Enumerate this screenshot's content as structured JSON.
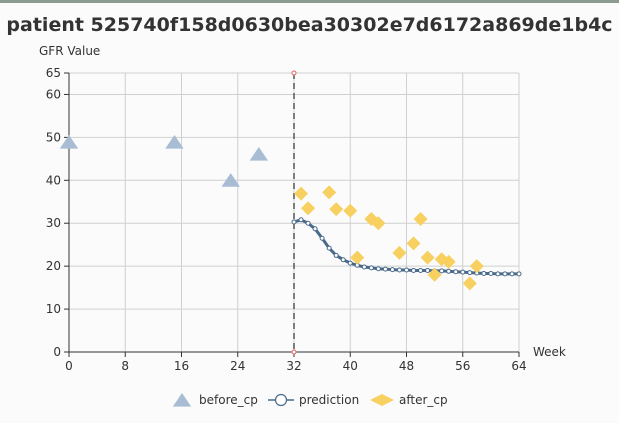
{
  "chart_data": {
    "type": "scatter",
    "title": "patient 525740f158d0630bea30302e7d6172a869de1b4c",
    "xlabel": "Week",
    "ylabel": "GFR Value",
    "xlim": [
      0,
      64
    ],
    "ylim": [
      0,
      65
    ],
    "x_ticks": [
      0,
      8,
      16,
      24,
      32,
      40,
      48,
      56,
      64
    ],
    "y_ticks": [
      0,
      10,
      20,
      30,
      40,
      50,
      60,
      65
    ],
    "grid": true,
    "change_point_week": 32,
    "legend_position": "bottom",
    "series": [
      {
        "name": "before_cp",
        "marker": "triangle",
        "color": "#a8bcd4",
        "points": [
          [
            0,
            48.7
          ],
          [
            15,
            48.7
          ],
          [
            23,
            39.8
          ],
          [
            27,
            45.9
          ]
        ]
      },
      {
        "name": "prediction",
        "marker": "circle-line",
        "color": "#4a6a8a",
        "points": [
          [
            32,
            30.3
          ],
          [
            33,
            30.8
          ],
          [
            34,
            30.0
          ],
          [
            35,
            28.7
          ],
          [
            36,
            26.5
          ],
          [
            37,
            24.2
          ],
          [
            38,
            22.5
          ],
          [
            39,
            21.5
          ],
          [
            40,
            20.7
          ],
          [
            41,
            20.2
          ],
          [
            42,
            19.8
          ],
          [
            43,
            19.6
          ],
          [
            44,
            19.4
          ],
          [
            45,
            19.3
          ],
          [
            46,
            19.2
          ],
          [
            47,
            19.1
          ],
          [
            48,
            19.1
          ],
          [
            49,
            19.0
          ],
          [
            50,
            19.0
          ],
          [
            51,
            19.0
          ],
          [
            52,
            18.9
          ],
          [
            53,
            18.9
          ],
          [
            54,
            18.8
          ],
          [
            55,
            18.7
          ],
          [
            56,
            18.6
          ],
          [
            57,
            18.5
          ],
          [
            58,
            18.4
          ],
          [
            59,
            18.3
          ],
          [
            60,
            18.3
          ],
          [
            61,
            18.2
          ],
          [
            62,
            18.2
          ],
          [
            63,
            18.2
          ],
          [
            64,
            18.2
          ]
        ]
      },
      {
        "name": "after_cp",
        "marker": "diamond",
        "color": "#f7d060",
        "points": [
          [
            33,
            36.9
          ],
          [
            34,
            33.5
          ],
          [
            37,
            37.2
          ],
          [
            38,
            33.3
          ],
          [
            40,
            32.9
          ],
          [
            41,
            22.0
          ],
          [
            43,
            31.0
          ],
          [
            44,
            30.0
          ],
          [
            47,
            23.1
          ],
          [
            49,
            25.3
          ],
          [
            50,
            31.0
          ],
          [
            51,
            22.0
          ],
          [
            52,
            18.0
          ],
          [
            53,
            21.6
          ],
          [
            54,
            21.0
          ],
          [
            57,
            16.0
          ],
          [
            58,
            20.0
          ]
        ]
      }
    ]
  }
}
